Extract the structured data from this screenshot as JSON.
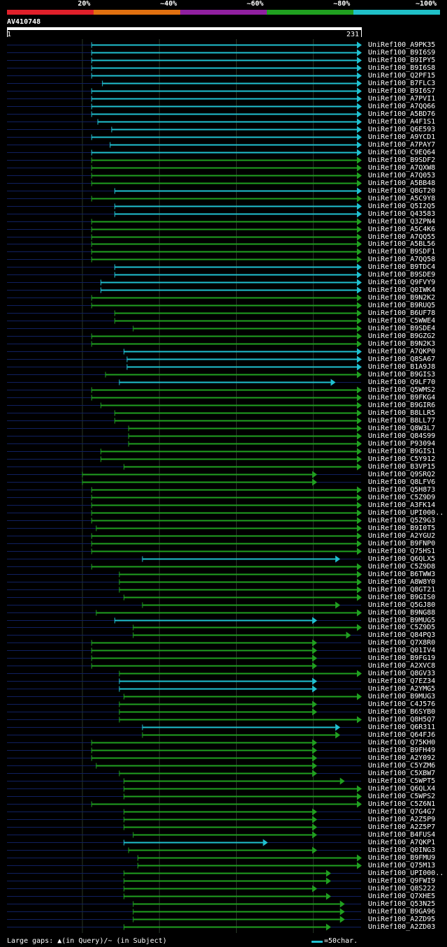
{
  "legend": {
    "segments": [
      {
        "label": "20%",
        "color": "#e0202a"
      },
      {
        "label": "~40%",
        "color": "#e07010"
      },
      {
        "label": "~60%",
        "color": "#9020a0"
      },
      {
        "label": "~80%",
        "color": "#20a020"
      },
      {
        "label": "~100%",
        "color": "#20c0c8"
      }
    ]
  },
  "query": {
    "id": "AV410748",
    "start": "1",
    "end": "231",
    "length": 231
  },
  "colors": {
    "green": "#20a020",
    "cyan": "#20c0d0",
    "navy": "#102060",
    "grid": "#283828"
  },
  "hits": [
    {
      "label": "UniRef100_A9PK35",
      "start": 56,
      "end": 231,
      "color": "cyan"
    },
    {
      "label": "UniRef100_B9I6S9",
      "start": 56,
      "end": 231,
      "color": "cyan"
    },
    {
      "label": "UniRef100_B9IPY5",
      "start": 56,
      "end": 231,
      "color": "cyan"
    },
    {
      "label": "UniRef100_B9I6S8",
      "start": 56,
      "end": 231,
      "color": "cyan"
    },
    {
      "label": "UniRef100_Q2PF15",
      "start": 56,
      "end": 231,
      "color": "cyan"
    },
    {
      "label": "UniRef100_B7FLC3",
      "start": 63,
      "end": 231,
      "color": "cyan"
    },
    {
      "label": "UniRef100_B9I6S7",
      "start": 56,
      "end": 231,
      "color": "cyan"
    },
    {
      "label": "UniRef100_A7PVI1",
      "start": 56,
      "end": 231,
      "color": "cyan"
    },
    {
      "label": "UniRef100_A7QQ66",
      "start": 56,
      "end": 231,
      "color": "cyan"
    },
    {
      "label": "UniRef100_A5BD76",
      "start": 56,
      "end": 231,
      "color": "cyan"
    },
    {
      "label": "UniRef100_A4F1S1",
      "start": 60,
      "end": 231,
      "color": "cyan"
    },
    {
      "label": "UniRef100_Q6E593",
      "start": 69,
      "end": 231,
      "color": "cyan"
    },
    {
      "label": "UniRef100_A9YCD1",
      "start": 56,
      "end": 231,
      "color": "cyan"
    },
    {
      "label": "UniRef100_A7PAY7",
      "start": 68,
      "end": 231,
      "color": "cyan"
    },
    {
      "label": "UniRef100_C9EQ64",
      "start": 56,
      "end": 231,
      "color": "cyan"
    },
    {
      "label": "UniRef100_B9SDF2",
      "start": 56,
      "end": 231,
      "color": "green"
    },
    {
      "label": "UniRef100_A7QXW8",
      "start": 56,
      "end": 231,
      "color": "green"
    },
    {
      "label": "UniRef100_A7Q053",
      "start": 56,
      "end": 231,
      "color": "green"
    },
    {
      "label": "UniRef100_A5BB48",
      "start": 56,
      "end": 231,
      "color": "green"
    },
    {
      "label": "UniRef100_Q8GT20",
      "start": 71,
      "end": 231,
      "color": "cyan"
    },
    {
      "label": "UniRef100_A5C9Y8",
      "start": 56,
      "end": 231,
      "color": "green"
    },
    {
      "label": "UniRef100_Q5I2Q5",
      "start": 71,
      "end": 231,
      "color": "cyan"
    },
    {
      "label": "UniRef100_Q43583",
      "start": 71,
      "end": 231,
      "color": "cyan"
    },
    {
      "label": "UniRef100_Q3ZPN4",
      "start": 56,
      "end": 231,
      "color": "green"
    },
    {
      "label": "UniRef100_A5C4K6",
      "start": 56,
      "end": 231,
      "color": "green"
    },
    {
      "label": "UniRef100_A7QQ55",
      "start": 56,
      "end": 231,
      "color": "green"
    },
    {
      "label": "UniRef100_A5BL56",
      "start": 56,
      "end": 231,
      "color": "green"
    },
    {
      "label": "UniRef100_B9SDF1",
      "start": 56,
      "end": 231,
      "color": "green"
    },
    {
      "label": "UniRef100_A7QQ58",
      "start": 56,
      "end": 231,
      "color": "green"
    },
    {
      "label": "UniRef100_B9TDC4",
      "start": 71,
      "end": 231,
      "color": "cyan"
    },
    {
      "label": "UniRef100_B9SDE9",
      "start": 71,
      "end": 231,
      "color": "cyan"
    },
    {
      "label": "UniRef100_Q9FVY9",
      "start": 62,
      "end": 231,
      "color": "cyan"
    },
    {
      "label": "UniRef100_Q0IWK4",
      "start": 62,
      "end": 231,
      "color": "cyan"
    },
    {
      "label": "UniRef100_B9N2K2",
      "start": 56,
      "end": 231,
      "color": "green"
    },
    {
      "label": "UniRef100_B9RUQ5",
      "start": 56,
      "end": 231,
      "color": "green"
    },
    {
      "label": "UniRef100_B6UF78",
      "start": 71,
      "end": 231,
      "color": "green"
    },
    {
      "label": "UniRef100_C5WWE4",
      "start": 71,
      "end": 231,
      "color": "green"
    },
    {
      "label": "UniRef100_B9SDE4",
      "start": 83,
      "end": 231,
      "color": "green"
    },
    {
      "label": "UniRef100_B9GZG2",
      "start": 56,
      "end": 231,
      "color": "green"
    },
    {
      "label": "UniRef100_B9N2K3",
      "start": 56,
      "end": 231,
      "color": "green"
    },
    {
      "label": "UniRef100_A7QKP0",
      "start": 77,
      "end": 231,
      "color": "cyan"
    },
    {
      "label": "UniRef100_Q8SA67",
      "start": 79,
      "end": 231,
      "color": "cyan"
    },
    {
      "label": "UniRef100_B1A9J8",
      "start": 79,
      "end": 231,
      "color": "cyan"
    },
    {
      "label": "UniRef100_B9GIS3",
      "start": 65,
      "end": 231,
      "color": "green"
    },
    {
      "label": "UniRef100_Q9LF70",
      "start": 74,
      "end": 214,
      "color": "cyan"
    },
    {
      "label": "UniRef100_Q5WMS2",
      "start": 56,
      "end": 231,
      "color": "green"
    },
    {
      "label": "UniRef100_B9FKG4",
      "start": 56,
      "end": 231,
      "color": "green"
    },
    {
      "label": "UniRef100_B9GIR6",
      "start": 62,
      "end": 231,
      "color": "green"
    },
    {
      "label": "UniRef100_B8LLR5",
      "start": 71,
      "end": 231,
      "color": "green"
    },
    {
      "label": "UniRef100_B8LL77",
      "start": 71,
      "end": 231,
      "color": "green"
    },
    {
      "label": "UniRef100_Q8W3L7",
      "start": 80,
      "end": 231,
      "color": "green"
    },
    {
      "label": "UniRef100_Q84S99",
      "start": 80,
      "end": 231,
      "color": "green"
    },
    {
      "label": "UniRef100_P93094",
      "start": 80,
      "end": 231,
      "color": "green"
    },
    {
      "label": "UniRef100_B9GIS1",
      "start": 62,
      "end": 231,
      "color": "green"
    },
    {
      "label": "UniRef100_C5Y912",
      "start": 62,
      "end": 231,
      "color": "green"
    },
    {
      "label": "UniRef100_B3VP15",
      "start": 77,
      "end": 231,
      "color": "green"
    },
    {
      "label": "UniRef100_Q9SRQ2",
      "start": 50,
      "end": 202,
      "color": "green"
    },
    {
      "label": "UniRef100_Q8LFV6",
      "start": 50,
      "end": 202,
      "color": "green"
    },
    {
      "label": "UniRef100_Q5H873",
      "start": 56,
      "end": 231,
      "color": "green"
    },
    {
      "label": "UniRef100_C5Z9D9",
      "start": 56,
      "end": 231,
      "color": "green"
    },
    {
      "label": "UniRef100_A3FK14",
      "start": 56,
      "end": 231,
      "color": "green"
    },
    {
      "label": "UniRef100_UPI000..",
      "start": 56,
      "end": 231,
      "color": "green"
    },
    {
      "label": "UniRef100_Q5Z9G3",
      "start": 56,
      "end": 231,
      "color": "green"
    },
    {
      "label": "UniRef100_B9I0T5",
      "start": 59,
      "end": 231,
      "color": "green"
    },
    {
      "label": "UniRef100_A2YGU2",
      "start": 56,
      "end": 231,
      "color": "green"
    },
    {
      "label": "UniRef100_B9FNP0",
      "start": 56,
      "end": 231,
      "color": "green"
    },
    {
      "label": "UniRef100_Q75HS1",
      "start": 56,
      "end": 231,
      "color": "green"
    },
    {
      "label": "UniRef100_Q6QLX5",
      "start": 89,
      "end": 217,
      "color": "cyan"
    },
    {
      "label": "UniRef100_C5Z9D8",
      "start": 56,
      "end": 231,
      "color": "green"
    },
    {
      "label": "UniRef100_B6TWW3",
      "start": 74,
      "end": 231,
      "color": "green"
    },
    {
      "label": "UniRef100_A8W8Y0",
      "start": 74,
      "end": 231,
      "color": "green"
    },
    {
      "label": "UniRef100_Q8GT21",
      "start": 74,
      "end": 231,
      "color": "green"
    },
    {
      "label": "UniRef100_B9GIS0",
      "start": 77,
      "end": 231,
      "color": "green"
    },
    {
      "label": "UniRef100_Q5GJ80",
      "start": 89,
      "end": 217,
      "color": "green"
    },
    {
      "label": "UniRef100_B9NG88",
      "start": 59,
      "end": 231,
      "color": "green"
    },
    {
      "label": "UniRef100_B9MUG5",
      "start": 71,
      "end": 202,
      "color": "cyan"
    },
    {
      "label": "UniRef100_C5Z9D5",
      "start": 83,
      "end": 231,
      "color": "green"
    },
    {
      "label": "UniRef100_Q84PQ3",
      "start": 83,
      "end": 224,
      "color": "green"
    },
    {
      "label": "UniRef100_Q7X8R0",
      "start": 56,
      "end": 202,
      "color": "green"
    },
    {
      "label": "UniRef100_Q01IV4",
      "start": 56,
      "end": 202,
      "color": "green"
    },
    {
      "label": "UniRef100_B9FG19",
      "start": 56,
      "end": 202,
      "color": "green"
    },
    {
      "label": "UniRef100_A2XVC8",
      "start": 56,
      "end": 202,
      "color": "green"
    },
    {
      "label": "UniRef100_Q8GV33",
      "start": 74,
      "end": 231,
      "color": "green"
    },
    {
      "label": "UniRef100_Q7EZ34",
      "start": 74,
      "end": 202,
      "color": "cyan"
    },
    {
      "label": "UniRef100_A2YMG5",
      "start": 74,
      "end": 202,
      "color": "cyan"
    },
    {
      "label": "UniRef100_B9MUG3",
      "start": 77,
      "end": 231,
      "color": "green"
    },
    {
      "label": "UniRef100_C4J576",
      "start": 74,
      "end": 202,
      "color": "green"
    },
    {
      "label": "UniRef100_B6SYB0",
      "start": 74,
      "end": 202,
      "color": "green"
    },
    {
      "label": "UniRef100_Q8H5Q7",
      "start": 74,
      "end": 231,
      "color": "green"
    },
    {
      "label": "UniRef100_Q6R311",
      "start": 89,
      "end": 217,
      "color": "cyan"
    },
    {
      "label": "UniRef100_Q64FJ6",
      "start": 89,
      "end": 217,
      "color": "green"
    },
    {
      "label": "UniRef100_Q75KH0",
      "start": 56,
      "end": 202,
      "color": "green"
    },
    {
      "label": "UniRef100_B9FH49",
      "start": 56,
      "end": 202,
      "color": "green"
    },
    {
      "label": "UniRef100_A2Y092",
      "start": 56,
      "end": 202,
      "color": "green"
    },
    {
      "label": "UniRef100_C5YZM6",
      "start": 59,
      "end": 202,
      "color": "green"
    },
    {
      "label": "UniRef100_C5XBW7",
      "start": 74,
      "end": 202,
      "color": "green"
    },
    {
      "label": "UniRef100_C5WPT5",
      "start": 77,
      "end": 220,
      "color": "green"
    },
    {
      "label": "UniRef100_Q6QLX4",
      "start": 77,
      "end": 231,
      "color": "green"
    },
    {
      "label": "UniRef100_C5WPS2",
      "start": 77,
      "end": 231,
      "color": "green"
    },
    {
      "label": "UniRef100_C5Z6N1",
      "start": 56,
      "end": 231,
      "color": "green"
    },
    {
      "label": "UniRef100_Q7G4G7",
      "start": 77,
      "end": 202,
      "color": "green"
    },
    {
      "label": "UniRef100_A2Z5P9",
      "start": 77,
      "end": 202,
      "color": "green"
    },
    {
      "label": "UniRef100_A2Z5P7",
      "start": 77,
      "end": 202,
      "color": "green"
    },
    {
      "label": "UniRef100_B4FUS4",
      "start": 83,
      "end": 202,
      "color": "green"
    },
    {
      "label": "UniRef100_A7QKP1",
      "start": 77,
      "end": 170,
      "color": "cyan"
    },
    {
      "label": "UniRef100_Q0ING3",
      "start": 80,
      "end": 202,
      "color": "green"
    },
    {
      "label": "UniRef100_B9FMU9",
      "start": 86,
      "end": 231,
      "color": "green"
    },
    {
      "label": "UniRef100_Q75M13",
      "start": 86,
      "end": 231,
      "color": "green"
    },
    {
      "label": "UniRef100_UPI000..",
      "start": 77,
      "end": 211,
      "color": "green"
    },
    {
      "label": "UniRef100_Q9FWI9",
      "start": 77,
      "end": 211,
      "color": "green"
    },
    {
      "label": "UniRef100_Q8S222",
      "start": 77,
      "end": 202,
      "color": "green"
    },
    {
      "label": "UniRef100_Q7XHE5",
      "start": 77,
      "end": 211,
      "color": "green"
    },
    {
      "label": "UniRef100_Q53N25",
      "start": 83,
      "end": 220,
      "color": "green"
    },
    {
      "label": "UniRef100_B9GA96",
      "start": 83,
      "end": 220,
      "color": "green"
    },
    {
      "label": "UniRef100_A2ZD95",
      "start": 83,
      "end": 220,
      "color": "green"
    },
    {
      "label": "UniRef100_A2ZD03",
      "start": 77,
      "end": 211,
      "color": "green"
    }
  ],
  "footer": {
    "gaps_text": "Large gaps: ▲(in Query)/~ (in Subject)",
    "scale_text": "=50char."
  }
}
